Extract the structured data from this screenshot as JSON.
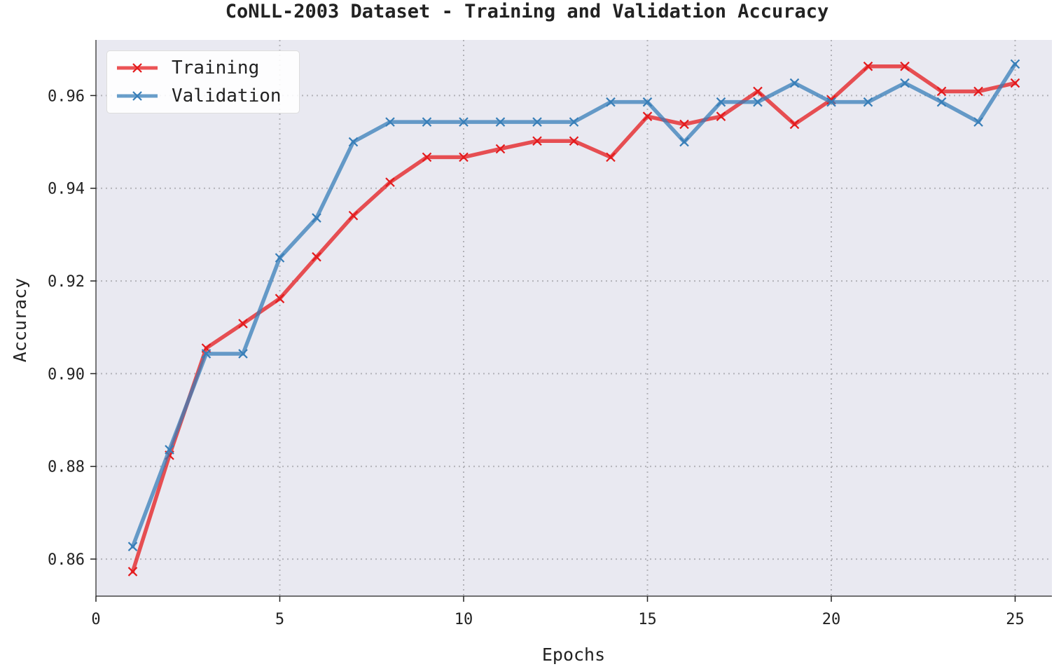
{
  "chart_data": {
    "type": "line",
    "title": "CoNLL-2003 Dataset - Training and Validation Accuracy",
    "xlabel": "Epochs",
    "ylabel": "Accuracy",
    "xlim": [
      0,
      26
    ],
    "ylim": [
      0.852,
      0.972
    ],
    "xticks": [
      0,
      5,
      10,
      15,
      20,
      25
    ],
    "yticks": [
      0.86,
      0.88,
      0.9,
      0.92,
      0.94,
      0.96
    ],
    "ytick_labels": [
      "0.86",
      "0.88",
      "0.90",
      "0.92",
      "0.94",
      "0.96"
    ],
    "xtick_labels": [
      "0",
      "5",
      "10",
      "15",
      "20",
      "25"
    ],
    "grid": true,
    "grid_style": "dotted",
    "background": "#e9e9f1",
    "legend_position": "top-left",
    "marker": "x",
    "x": [
      1,
      2,
      3,
      4,
      5,
      6,
      7,
      8,
      9,
      10,
      11,
      12,
      13,
      14,
      15,
      16,
      17,
      18,
      19,
      20,
      21,
      22,
      23,
      24,
      25
    ],
    "series": [
      {
        "name": "Training",
        "color": "#e41a1c",
        "values": [
          0.8573,
          0.8824,
          0.9055,
          0.9108,
          0.9162,
          0.9252,
          0.9341,
          0.9413,
          0.9467,
          0.9467,
          0.9485,
          0.9502,
          0.9502,
          0.9467,
          0.9555,
          0.9538,
          0.9555,
          0.9609,
          0.9538,
          0.9591,
          0.9663,
          0.9663,
          0.9609,
          0.9609,
          0.9627
        ]
      },
      {
        "name": "Validation",
        "color": "#377eb8",
        "values": [
          0.8627,
          0.8836,
          0.9043,
          0.9043,
          0.925,
          0.9336,
          0.95,
          0.9543,
          0.9543,
          0.9543,
          0.9543,
          0.9543,
          0.9543,
          0.9586,
          0.9586,
          0.95,
          0.9586,
          0.9586,
          0.9627,
          0.9586,
          0.9586,
          0.9627,
          0.9586,
          0.9543,
          0.9668
        ]
      }
    ]
  }
}
